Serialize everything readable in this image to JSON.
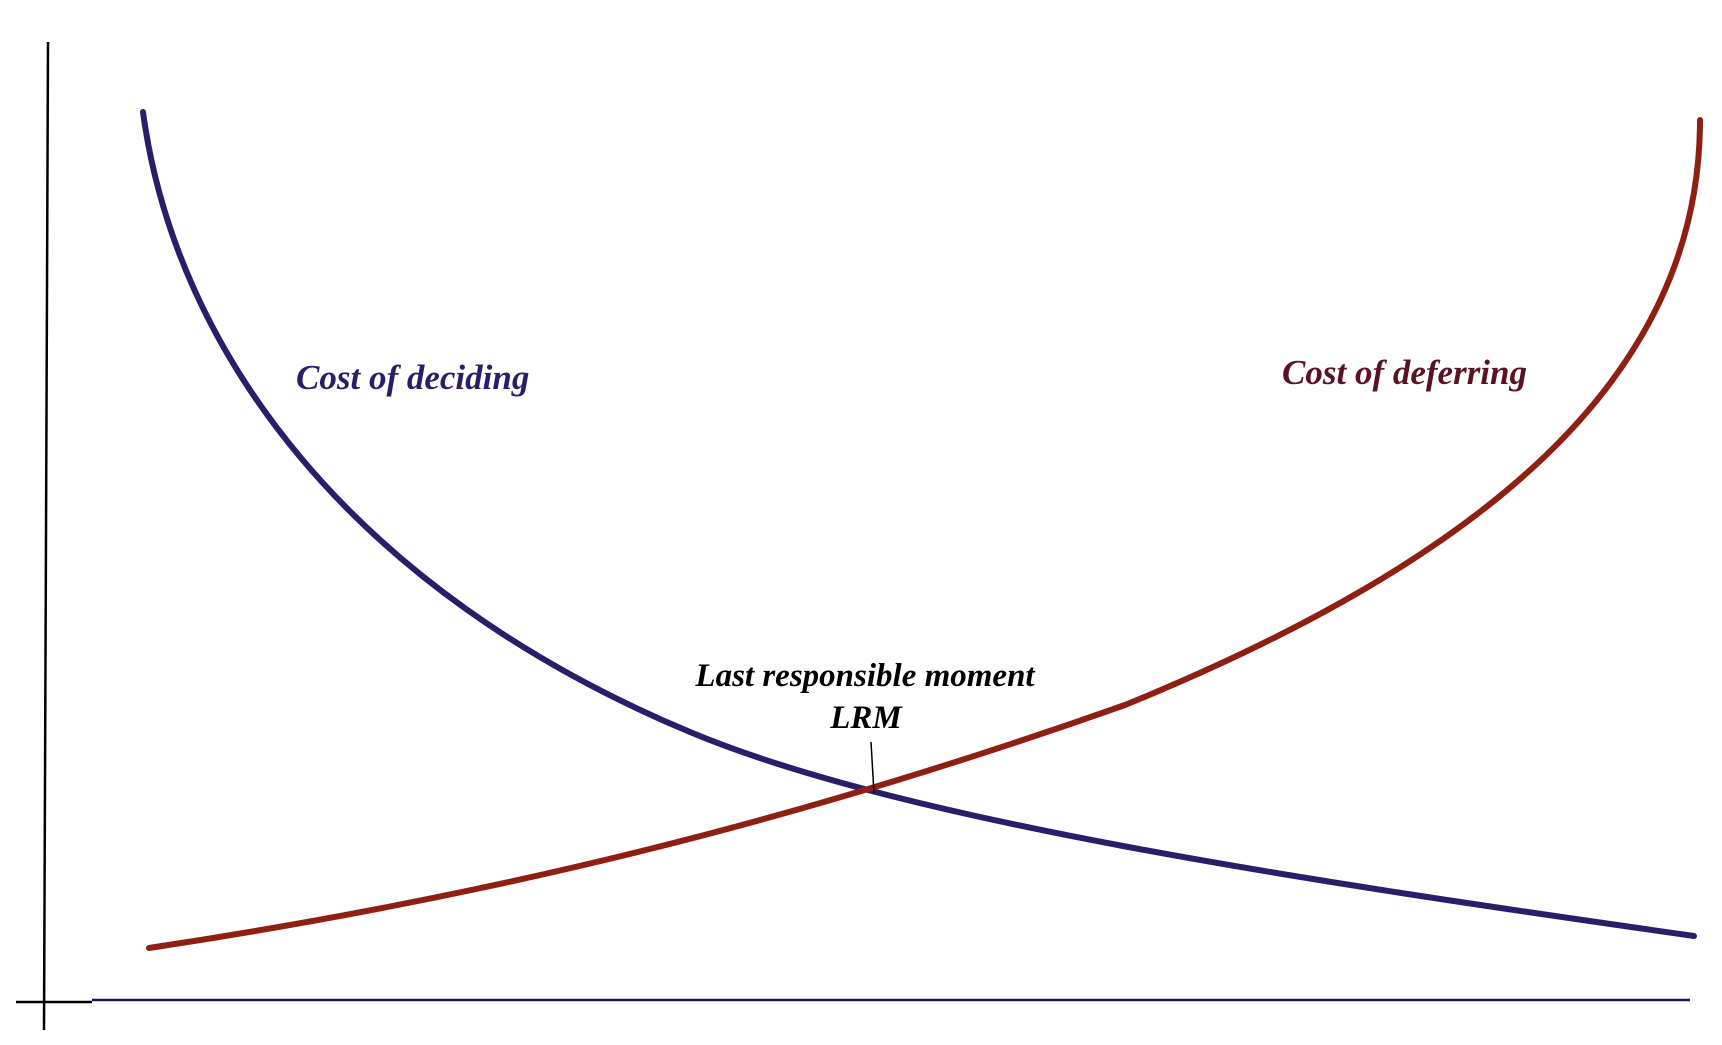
{
  "diagram": {
    "labels": {
      "cost_of_deciding": "Cost of deciding",
      "cost_of_deferring": "Cost of deferring",
      "lrm_line1": "Last responsible moment",
      "lrm_line2": "LRM"
    },
    "colors": {
      "cost_of_deciding": "#2A1E6B",
      "cost_of_deferring": "#8E1F12",
      "cost_of_deferring_label": "#5A1226",
      "axis_y": "#000000",
      "axis_x": "#1A1458",
      "lrm_text": "#000000"
    }
  }
}
